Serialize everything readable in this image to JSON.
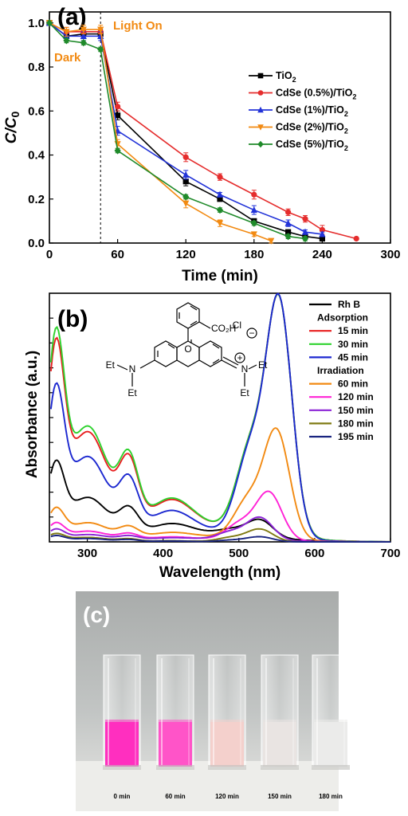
{
  "chart_data": [
    {
      "panel": "(a)",
      "type": "line",
      "xlabel": "Time (min)",
      "ylabel": "C/C0",
      "xlim": [
        0,
        300
      ],
      "ylim": [
        0.0,
        1.05
      ],
      "xticks": [
        "0",
        "60",
        "120",
        "180",
        "240",
        "300"
      ],
      "yticks": [
        "0.0",
        "0.2",
        "0.4",
        "0.6",
        "0.8",
        "1.0"
      ],
      "annotations": {
        "light_on": "Light On",
        "dark": "Dark"
      },
      "light_on_x": 45,
      "legend_placement": "right",
      "series": [
        {
          "name": "TiO",
          "sub": "2",
          "color": "#000000",
          "marker": "square",
          "x": [
            0,
            15,
            30,
            45,
            60,
            120,
            150,
            180,
            210,
            225,
            240
          ],
          "y": [
            1.0,
            0.94,
            0.95,
            0.95,
            0.58,
            0.28,
            0.2,
            0.1,
            0.05,
            0.03,
            0.02
          ],
          "err": [
            0,
            0.02,
            0.02,
            0.02,
            0.02,
            0.02,
            0.01,
            0.01,
            0.01,
            0.01,
            0.01
          ]
        },
        {
          "name": "CdSe (0.5%)/TiO",
          "sub": "2",
          "color": "#e52d2d",
          "marker": "circle",
          "x": [
            0,
            15,
            30,
            45,
            60,
            120,
            150,
            180,
            210,
            225,
            240,
            270
          ],
          "y": [
            1.0,
            0.96,
            0.96,
            0.96,
            0.62,
            0.39,
            0.3,
            0.22,
            0.14,
            0.11,
            0.06,
            0.02
          ],
          "err": [
            0,
            0.02,
            0.02,
            0.02,
            0.02,
            0.02,
            0.015,
            0.02,
            0.015,
            0.015,
            0.02,
            0
          ]
        },
        {
          "name": "CdSe (1%)/TiO",
          "sub": "2",
          "color": "#2233d8",
          "marker": "triangle",
          "x": [
            0,
            15,
            30,
            45,
            60,
            120,
            150,
            180,
            210,
            225,
            240
          ],
          "y": [
            1.0,
            0.94,
            0.94,
            0.94,
            0.51,
            0.31,
            0.22,
            0.15,
            0.09,
            0.05,
            0.04
          ],
          "err": [
            0,
            0.02,
            0.02,
            0.02,
            0.02,
            0.02,
            0.01,
            0.02,
            0.015,
            0.01,
            0.01
          ]
        },
        {
          "name": "CdSe (2%)/TiO",
          "sub": "2",
          "color": "#f28a12",
          "marker": "triangle-down",
          "x": [
            0,
            15,
            30,
            45,
            60,
            120,
            150,
            180,
            195
          ],
          "y": [
            1.0,
            0.96,
            0.97,
            0.97,
            0.45,
            0.18,
            0.09,
            0.04,
            0.01
          ],
          "err": [
            0,
            0.02,
            0.02,
            0.02,
            0.02,
            0.02,
            0.015,
            0.01,
            0.01
          ]
        },
        {
          "name": "CdSe (5%)/TiO",
          "sub": "2",
          "color": "#1f8a2a",
          "marker": "diamond",
          "x": [
            0,
            15,
            30,
            45,
            60,
            120,
            150,
            180,
            210,
            225
          ],
          "y": [
            1.0,
            0.92,
            0.91,
            0.88,
            0.42,
            0.21,
            0.15,
            0.09,
            0.03,
            0.02
          ],
          "err": [
            0,
            0.01,
            0.01,
            0.01,
            0.01,
            0.01,
            0.01,
            0.01,
            0.01,
            0.01
          ]
        }
      ]
    },
    {
      "panel": "(b)",
      "type": "line",
      "xlabel": "Wavelength (nm)",
      "ylabel": "Absorbance (a.u.)",
      "xlim": [
        250,
        700
      ],
      "ylim": [
        0,
        1.0
      ],
      "xticks": [
        "300",
        "400",
        "500",
        "600",
        "700"
      ],
      "legend_placement": "right",
      "legend_headers": {
        "adsorption": "Adsorption",
        "irradiation": "Irradiation"
      },
      "series": [
        {
          "name": "Rh B",
          "color": "#000000",
          "peak": 0.07,
          "uv": 0.38,
          "tail": 0.03,
          "group": ""
        },
        {
          "name": "15 min",
          "color": "#e82020",
          "peak": 0.93,
          "uv": 0.95,
          "tail": 0.06,
          "group": "adsorption"
        },
        {
          "name": "30 min",
          "color": "#2ed22e",
          "peak": 0.93,
          "uv": 1.0,
          "tail": 0.06,
          "group": "adsorption"
        },
        {
          "name": "45 min",
          "color": "#1c28d0",
          "peak": 0.94,
          "uv": 0.74,
          "tail": 0.04,
          "group": "adsorption"
        },
        {
          "name": "60 min",
          "color": "#f28a12",
          "peak": 0.43,
          "uv": 0.16,
          "tail": 0.02,
          "group": "irradiation"
        },
        {
          "name": "120 min",
          "color": "#ff22d6",
          "peak": 0.19,
          "uv": 0.09,
          "tail": 0.01,
          "group": "irradiation"
        },
        {
          "name": "150 min",
          "color": "#8b22d6",
          "peak": 0.09,
          "uv": 0.06,
          "tail": 0.01,
          "group": "irradiation"
        },
        {
          "name": "180 min",
          "color": "#7f7a12",
          "peak": 0.05,
          "uv": 0.04,
          "tail": 0.0,
          "group": "irradiation"
        },
        {
          "name": "195 min",
          "color": "#1a2580",
          "peak": 0.02,
          "uv": 0.03,
          "tail": 0.0,
          "group": "irradiation"
        }
      ]
    }
  ],
  "structure": {
    "co2h": "CO₂H",
    "cl": "Cl",
    "et": "Et",
    "n": "N",
    "plus": "+",
    "minus": "−"
  },
  "photo": {
    "panel": "(c)",
    "samples": [
      {
        "label": "0 min",
        "color": "#ff2fbf"
      },
      {
        "label": "60 min",
        "color": "#ff54c8"
      },
      {
        "label": "120 min",
        "color": "#f4d0cc"
      },
      {
        "label": "150 min",
        "color": "#e9e4e2"
      },
      {
        "label": "180 min",
        "color": "#ebebea"
      }
    ]
  }
}
